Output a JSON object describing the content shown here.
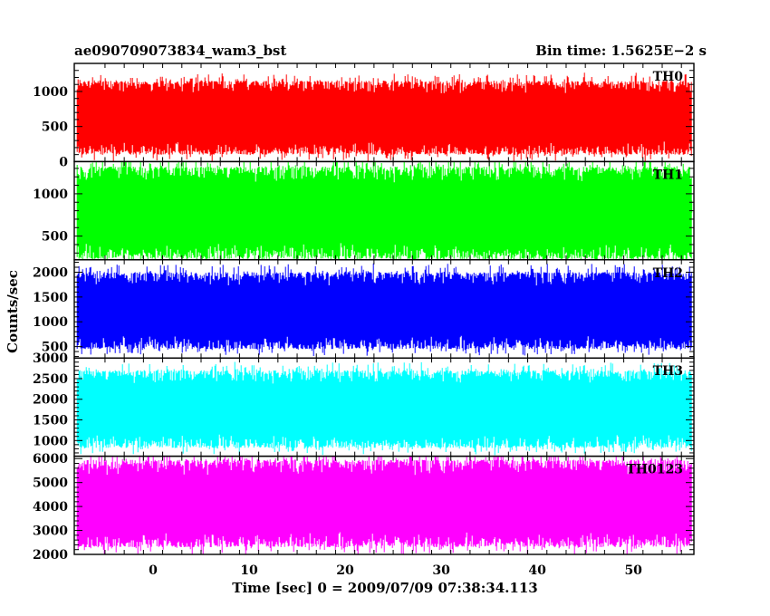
{
  "chart_data": {
    "type": "line",
    "title_left": "ae090709073834_wam3_bst",
    "title_right": "Bin time: 1.5625E−2 s",
    "xlabel": "Time [sec] 0 = 2009/07/09 07:38:34.113",
    "ylabel": "Counts/sec",
    "xlim": [
      -8.2,
      56.3
    ],
    "x_data_range": [
      -7.9,
      56.1
    ],
    "xticks": [
      0,
      10,
      20,
      30,
      40,
      50
    ],
    "grid": false,
    "panels": [
      {
        "name": "TH0",
        "color": "#ff0000",
        "ylim": [
          0,
          1400
        ],
        "yticks": [
          0,
          500,
          1000
        ],
        "y_low": 100,
        "y_high": 1150,
        "y_mean": 640
      },
      {
        "name": "TH1",
        "color": "#00ff00",
        "ylim": [
          220,
          1380
        ],
        "yticks": [
          500,
          1000
        ],
        "y_low": 230,
        "y_high": 1320,
        "y_mean": 780
      },
      {
        "name": "TH2",
        "color": "#0000ff",
        "ylim": [
          270,
          2250
        ],
        "yticks": [
          500,
          1000,
          1500,
          2000
        ],
        "y_low": 450,
        "y_high": 2000,
        "y_mean": 1220
      },
      {
        "name": "TH3",
        "color": "#00ffff",
        "ylim": [
          620,
          3000
        ],
        "yticks": [
          1000,
          1500,
          2000,
          2500,
          3000
        ],
        "y_low": 820,
        "y_high": 2700,
        "y_mean": 1750
      },
      {
        "name": "TH0123",
        "color": "#ff00ff",
        "ylim": [
          2000,
          6100
        ],
        "yticks": [
          2000,
          3000,
          4000,
          5000,
          6000
        ],
        "y_low": 2300,
        "y_high": 5950,
        "y_mean": 3950
      }
    ]
  }
}
